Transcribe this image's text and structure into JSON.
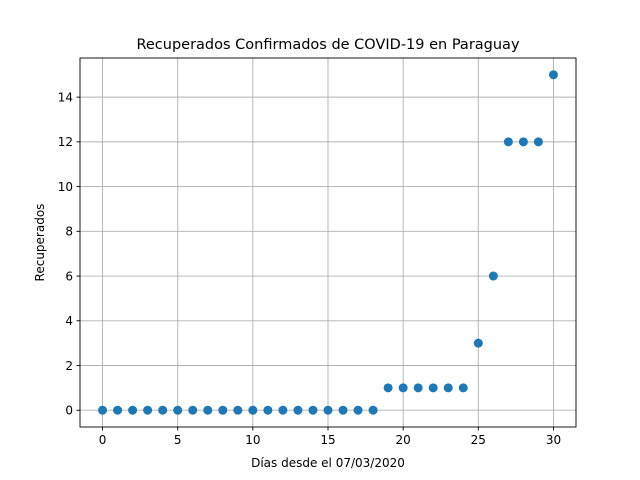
{
  "chart_data": {
    "type": "scatter",
    "title": "Recuperados Confirmados de COVID-19 en Paraguay",
    "xlabel": "Días desde el 07/03/2020",
    "ylabel": "Recuperados",
    "x": [
      0,
      1,
      2,
      3,
      4,
      5,
      6,
      7,
      8,
      9,
      10,
      11,
      12,
      13,
      14,
      15,
      16,
      17,
      18,
      19,
      20,
      21,
      22,
      23,
      24,
      25,
      26,
      27,
      28,
      29,
      30
    ],
    "y": [
      0,
      0,
      0,
      0,
      0,
      0,
      0,
      0,
      0,
      0,
      0,
      0,
      0,
      0,
      0,
      0,
      0,
      0,
      0,
      1,
      1,
      1,
      1,
      1,
      1,
      3,
      6,
      12,
      12,
      12,
      15
    ],
    "xlim": [
      -1.5,
      31.5
    ],
    "ylim": [
      -0.75,
      15.75
    ],
    "xticks": [
      0,
      5,
      10,
      15,
      20,
      25,
      30
    ],
    "yticks": [
      0,
      2,
      4,
      6,
      8,
      10,
      12,
      14
    ],
    "xtick_labels": [
      "0",
      "5",
      "10",
      "15",
      "20",
      "25",
      "30"
    ],
    "ytick_labels": [
      "0",
      "2",
      "4",
      "6",
      "8",
      "10",
      "12",
      "14"
    ],
    "grid": true,
    "marker_color": "#1f77b4"
  }
}
